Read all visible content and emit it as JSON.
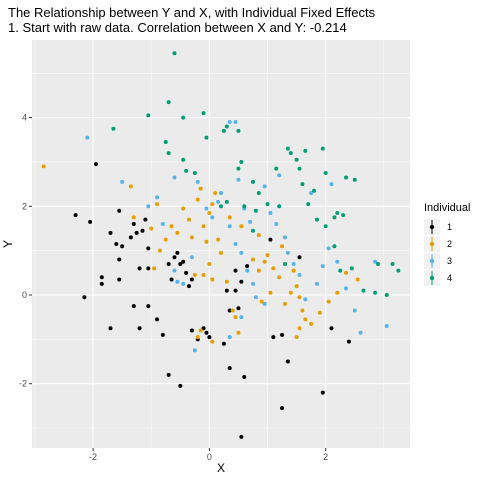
{
  "chart_data": {
    "type": "scatter",
    "title": "The Relationship between Y and X, with Individual Fixed Effects",
    "subtitle": "1. Start with raw data. Correlation between X and Y: -0.214",
    "xlabel": "X",
    "ylabel": "Y",
    "xlim": [
      -3.05,
      3.45
    ],
    "ylim": [
      -3.45,
      5.75
    ],
    "xticks": [
      -2,
      0,
      2
    ],
    "yticks": [
      -2,
      0,
      2,
      4
    ],
    "grid": true,
    "legend": {
      "title": "Individual",
      "placement": "right"
    },
    "series": [
      {
        "name": "1",
        "color": "#000000",
        "points": [
          [
            -2.3,
            1.8
          ],
          [
            -2.05,
            1.65
          ],
          [
            -1.95,
            2.95
          ],
          [
            -2.15,
            -0.05
          ],
          [
            -1.85,
            0.4
          ],
          [
            -1.85,
            0.25
          ],
          [
            -1.7,
            1.4
          ],
          [
            -1.6,
            1.15
          ],
          [
            -1.55,
            1.9
          ],
          [
            -1.5,
            1.1
          ],
          [
            -1.55,
            0.8
          ],
          [
            -1.55,
            0.35
          ],
          [
            -1.7,
            -0.75
          ],
          [
            -1.35,
            1.3
          ],
          [
            -1.3,
            1.6
          ],
          [
            -1.25,
            1.4
          ],
          [
            -1.2,
            0.6
          ],
          [
            -1.3,
            -0.25
          ],
          [
            -1.2,
            -0.75
          ],
          [
            -1.15,
            1.45
          ],
          [
            -1.1,
            1.7
          ],
          [
            -1.05,
            1.05
          ],
          [
            -1.05,
            0.6
          ],
          [
            -1.05,
            -0.25
          ],
          [
            -0.9,
            -0.55
          ],
          [
            -0.8,
            -0.9
          ],
          [
            -0.7,
            0.7
          ],
          [
            -0.65,
            0.35
          ],
          [
            -0.6,
            0.85
          ],
          [
            -0.55,
            0.95
          ],
          [
            -0.5,
            0.7
          ],
          [
            -0.45,
            0.75
          ],
          [
            -0.4,
            0.5
          ],
          [
            -0.35,
            0.2
          ],
          [
            -0.3,
            0.35
          ],
          [
            -0.7,
            -1.8
          ],
          [
            -0.5,
            -2.05
          ],
          [
            -0.3,
            -0.8
          ],
          [
            -0.2,
            -1.0
          ],
          [
            -0.1,
            -0.75
          ],
          [
            -0.05,
            -0.85
          ],
          [
            0.0,
            -0.95
          ],
          [
            0.25,
            -1.1
          ],
          [
            0.35,
            -1.65
          ],
          [
            0.3,
            0.1
          ],
          [
            0.35,
            -0.35
          ],
          [
            0.45,
            0.1
          ],
          [
            0.45,
            0.55
          ],
          [
            0.55,
            0.3
          ],
          [
            0.5,
            -0.3
          ],
          [
            0.6,
            -1.85
          ],
          [
            0.55,
            -3.2
          ],
          [
            1.05,
            1.25
          ],
          [
            1.1,
            -0.95
          ],
          [
            1.25,
            -0.9
          ],
          [
            1.35,
            -1.5
          ],
          [
            1.25,
            -2.55
          ],
          [
            1.95,
            -2.2
          ],
          [
            1.55,
            0.85
          ],
          [
            2.1,
            -0.75
          ],
          [
            2.4,
            -1.05
          ],
          [
            0.65,
            0.65
          ]
        ]
      },
      {
        "name": "2",
        "color": "#E69F00",
        "points": [
          [
            -2.85,
            2.9
          ],
          [
            -1.35,
            2.45
          ],
          [
            -1.3,
            1.75
          ],
          [
            -1.0,
            1.5
          ],
          [
            -0.9,
            2.05
          ],
          [
            -0.75,
            1.25
          ],
          [
            -0.85,
            1.0
          ],
          [
            -0.95,
            0.6
          ],
          [
            -0.65,
            1.55
          ],
          [
            -0.55,
            1.4
          ],
          [
            -0.45,
            1.95
          ],
          [
            -0.35,
            1.7
          ],
          [
            -0.3,
            1.3
          ],
          [
            -0.25,
            0.45
          ],
          [
            -0.2,
            2.15
          ],
          [
            -0.15,
            2.4
          ],
          [
            -0.1,
            1.55
          ],
          [
            -0.05,
            1.2
          ],
          [
            0.0,
            1.85
          ],
          [
            0.05,
            2.05
          ],
          [
            0.1,
            2.3
          ],
          [
            0.15,
            1.25
          ],
          [
            0.2,
            0.95
          ],
          [
            0.0,
            0.7
          ],
          [
            -0.1,
            0.45
          ],
          [
            0.05,
            0.35
          ],
          [
            0.3,
            0.3
          ],
          [
            0.4,
            -0.35
          ],
          [
            0.45,
            -0.5
          ],
          [
            0.5,
            -0.85
          ],
          [
            -0.15,
            -0.8
          ],
          [
            0.05,
            -1.05
          ],
          [
            -0.2,
            -0.95
          ],
          [
            0.75,
            0.8
          ],
          [
            0.85,
            0.55
          ],
          [
            0.95,
            0.75
          ],
          [
            1.0,
            0.9
          ],
          [
            1.1,
            0.6
          ],
          [
            1.2,
            0.4
          ],
          [
            1.05,
            0.05
          ],
          [
            0.9,
            -0.15
          ],
          [
            1.3,
            -0.2
          ],
          [
            1.4,
            0.05
          ],
          [
            1.45,
            0.55
          ],
          [
            1.5,
            0.2
          ],
          [
            1.55,
            -0.05
          ],
          [
            1.6,
            -0.35
          ],
          [
            1.65,
            -0.55
          ],
          [
            1.55,
            -0.75
          ],
          [
            1.75,
            -0.65
          ],
          [
            1.5,
            -0.95
          ],
          [
            1.9,
            -0.4
          ],
          [
            2.05,
            -0.15
          ],
          [
            2.2,
            0.05
          ],
          [
            2.35,
            0.5
          ],
          [
            2.55,
            0.35
          ],
          [
            1.25,
            1.1
          ],
          [
            0.55,
            1.55
          ],
          [
            0.35,
            1.75
          ],
          [
            0.85,
            1.35
          ]
        ]
      },
      {
        "name": "3",
        "color": "#56B4E9",
        "points": [
          [
            -2.1,
            3.55
          ],
          [
            -1.5,
            2.55
          ],
          [
            -1.05,
            2.0
          ],
          [
            -0.9,
            2.2
          ],
          [
            -0.6,
            2.65
          ],
          [
            -0.8,
            1.6
          ],
          [
            -0.6,
            0.55
          ],
          [
            -0.55,
            0.3
          ],
          [
            -0.45,
            0.25
          ],
          [
            -0.3,
            0.85
          ],
          [
            -0.2,
            2.55
          ],
          [
            -0.05,
            1.95
          ],
          [
            0.05,
            1.75
          ],
          [
            0.15,
            2.1
          ],
          [
            0.2,
            2.3
          ],
          [
            0.35,
            3.9
          ],
          [
            0.45,
            3.9
          ],
          [
            0.5,
            2.6
          ],
          [
            0.6,
            1.95
          ],
          [
            0.7,
            1.65
          ],
          [
            0.35,
            1.55
          ],
          [
            0.45,
            1.15
          ],
          [
            0.55,
            0.95
          ],
          [
            0.65,
            0.55
          ],
          [
            0.75,
            0.25
          ],
          [
            0.8,
            -0.05
          ],
          [
            0.95,
            -0.2
          ],
          [
            1.05,
            1.85
          ],
          [
            1.15,
            1.6
          ],
          [
            1.3,
            1.3
          ],
          [
            1.35,
            0.95
          ],
          [
            1.45,
            0.7
          ],
          [
            1.55,
            0.45
          ],
          [
            1.65,
            -0.1
          ],
          [
            1.85,
            0.25
          ],
          [
            1.95,
            0.65
          ],
          [
            2.05,
            1.05
          ],
          [
            2.2,
            0.75
          ],
          [
            2.35,
            0.15
          ],
          [
            2.5,
            -0.35
          ],
          [
            2.6,
            -0.85
          ],
          [
            2.85,
            0.75
          ],
          [
            3.05,
            -0.7
          ],
          [
            0.55,
            -0.5
          ],
          [
            0.35,
            -0.95
          ],
          [
            -0.25,
            -1.25
          ],
          [
            1.2,
            2.7
          ],
          [
            0.95,
            2.45
          ],
          [
            2.1,
            2.5
          ],
          [
            1.75,
            2.3
          ]
        ]
      },
      {
        "name": "4",
        "color": "#009E73",
        "points": [
          [
            -1.65,
            3.75
          ],
          [
            -0.6,
            5.45
          ],
          [
            -0.7,
            4.35
          ],
          [
            -0.45,
            4.0
          ],
          [
            -0.1,
            4.1
          ],
          [
            -1.05,
            4.05
          ],
          [
            -0.75,
            3.45
          ],
          [
            -0.7,
            3.2
          ],
          [
            -0.45,
            3.05
          ],
          [
            -0.4,
            2.8
          ],
          [
            -0.25,
            2.75
          ],
          [
            -0.05,
            3.55
          ],
          [
            0.25,
            3.7
          ],
          [
            0.3,
            3.8
          ],
          [
            0.5,
            3.7
          ],
          [
            0.55,
            3.0
          ],
          [
            0.5,
            2.85
          ],
          [
            0.75,
            2.55
          ],
          [
            0.85,
            2.3
          ],
          [
            0.3,
            2.1
          ],
          [
            0.2,
            2.0
          ],
          [
            0.6,
            2.0
          ],
          [
            0.8,
            1.9
          ],
          [
            1.0,
            2.05
          ],
          [
            1.15,
            2.85
          ],
          [
            1.35,
            3.3
          ],
          [
            1.4,
            3.2
          ],
          [
            1.5,
            3.05
          ],
          [
            1.55,
            2.85
          ],
          [
            1.6,
            2.5
          ],
          [
            1.7,
            2.05
          ],
          [
            1.85,
            1.7
          ],
          [
            2.0,
            1.55
          ],
          [
            2.15,
            1.75
          ],
          [
            2.2,
            1.85
          ],
          [
            2.3,
            1.8
          ],
          [
            2.35,
            2.65
          ],
          [
            2.5,
            2.6
          ],
          [
            1.95,
            3.3
          ],
          [
            2.15,
            1.1
          ],
          [
            2.25,
            0.55
          ],
          [
            2.45,
            0.6
          ],
          [
            2.65,
            0.1
          ],
          [
            2.85,
            0.05
          ],
          [
            2.9,
            0.7
          ],
          [
            3.05,
            0.0
          ],
          [
            3.15,
            0.7
          ],
          [
            3.25,
            0.55
          ],
          [
            0.75,
            1.45
          ],
          [
            1.2,
            2.0
          ],
          [
            1.3,
            0.7
          ],
          [
            1.65,
            3.25
          ],
          [
            1.8,
            2.35
          ],
          [
            2.0,
            2.75
          ]
        ]
      }
    ]
  }
}
